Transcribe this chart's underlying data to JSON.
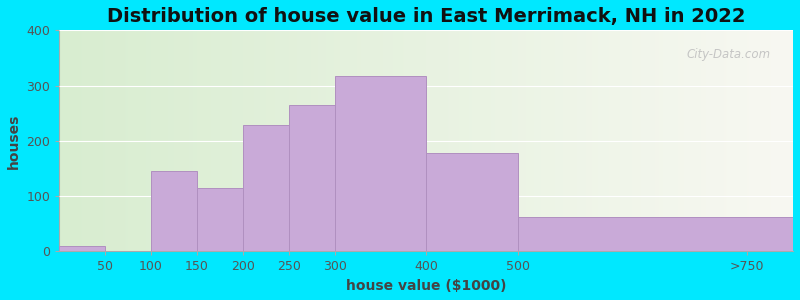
{
  "title": "Distribution of house value in East Merrimack, NH in 2022",
  "xlabel": "house value ($1000)",
  "ylabel": "houses",
  "bar_color": "#c9aad8",
  "bar_edgecolor": "#b090c0",
  "background_outer": "#00e8ff",
  "background_inner_left": "#d8edd0",
  "background_inner_right": "#f8f8f2",
  "ylim": [
    0,
    400
  ],
  "yticks": [
    0,
    100,
    200,
    300,
    400
  ],
  "tick_positions": [
    50,
    100,
    150,
    200,
    250,
    300,
    400,
    500,
    750
  ],
  "xtick_labels": [
    "50",
    "100",
    "150",
    "200",
    "250",
    "300",
    "400",
    "500",
    ">750"
  ],
  "bar_lefts": [
    0,
    50,
    100,
    150,
    200,
    250,
    300,
    400,
    500
  ],
  "bar_rights": [
    50,
    100,
    150,
    200,
    250,
    300,
    400,
    500,
    800
  ],
  "bar_heights": [
    10,
    0,
    145,
    115,
    228,
    265,
    318,
    178,
    63
  ],
  "xlim": [
    0,
    800
  ],
  "title_fontsize": 14,
  "axis_label_fontsize": 10,
  "tick_fontsize": 9,
  "watermark_text": "City-Data.com"
}
